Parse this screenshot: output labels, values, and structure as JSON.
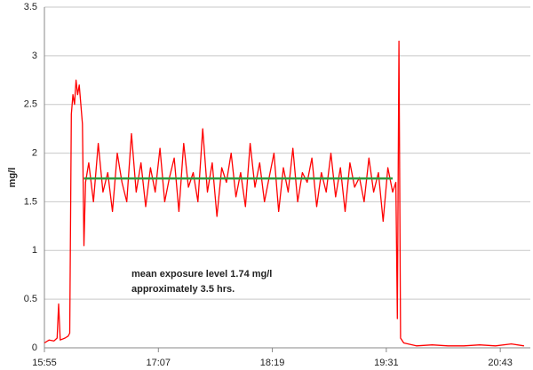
{
  "chart_data": {
    "type": "line",
    "ylabel": "mg/l",
    "annotations": [
      "mean exposure level 1.74 mg/l",
      "approximately  3.5 hrs."
    ],
    "xlim": [
      955,
      1262
    ],
    "xticks": [
      {
        "value": 955,
        "label": "15:55"
      },
      {
        "value": 1027,
        "label": "17:07"
      },
      {
        "value": 1099,
        "label": "18:19"
      },
      {
        "value": 1171,
        "label": "19:31"
      },
      {
        "value": 1243,
        "label": "20:43"
      }
    ],
    "ylim": [
      0,
      3.5
    ],
    "yticks": [
      0,
      0.5,
      1,
      1.5,
      2,
      2.5,
      3,
      3.5
    ],
    "grid": true,
    "series": [
      {
        "color": "#ff0000",
        "x": [
          955,
          958,
          961,
          963,
          964,
          965,
          968,
          970,
          971,
          972,
          973,
          974,
          975,
          976,
          977,
          978,
          979,
          980,
          981,
          983,
          986,
          989,
          992,
          995,
          998,
          1001,
          1004,
          1007,
          1010,
          1013,
          1016,
          1019,
          1022,
          1025,
          1028,
          1031,
          1034,
          1037,
          1040,
          1043,
          1046,
          1049,
          1052,
          1055,
          1058,
          1061,
          1064,
          1067,
          1070,
          1073,
          1076,
          1079,
          1082,
          1085,
          1088,
          1091,
          1094,
          1097,
          1100,
          1103,
          1106,
          1109,
          1112,
          1115,
          1118,
          1121,
          1124,
          1127,
          1130,
          1133,
          1136,
          1139,
          1142,
          1145,
          1148,
          1151,
          1154,
          1157,
          1160,
          1163,
          1166,
          1169,
          1172,
          1175,
          1177,
          1178,
          1179,
          1180,
          1182,
          1190,
          1200,
          1210,
          1220,
          1230,
          1240,
          1250,
          1258
        ],
        "values": [
          0.05,
          0.08,
          0.07,
          0.1,
          0.45,
          0.08,
          0.1,
          0.12,
          0.15,
          2.4,
          2.6,
          2.5,
          2.75,
          2.6,
          2.7,
          2.5,
          2.3,
          1.05,
          1.7,
          1.9,
          1.5,
          2.1,
          1.6,
          1.8,
          1.4,
          2.0,
          1.7,
          1.5,
          2.2,
          1.6,
          1.9,
          1.45,
          1.85,
          1.6,
          2.05,
          1.5,
          1.75,
          1.95,
          1.4,
          2.1,
          1.65,
          1.8,
          1.5,
          2.25,
          1.6,
          1.9,
          1.35,
          1.85,
          1.7,
          2.0,
          1.55,
          1.8,
          1.45,
          2.1,
          1.65,
          1.9,
          1.5,
          1.75,
          2.0,
          1.4,
          1.85,
          1.6,
          2.05,
          1.5,
          1.8,
          1.7,
          1.95,
          1.45,
          1.8,
          1.6,
          2.0,
          1.55,
          1.85,
          1.4,
          1.9,
          1.65,
          1.75,
          1.5,
          1.95,
          1.6,
          1.8,
          1.3,
          1.85,
          1.6,
          1.7,
          0.3,
          3.15,
          0.1,
          0.05,
          0.02,
          0.03,
          0.02,
          0.02,
          0.03,
          0.02,
          0.04,
          0.02
        ]
      },
      {
        "color": "#2e9a3e",
        "x": [
          980,
          1175
        ],
        "values": [
          1.74,
          1.74
        ]
      }
    ]
  }
}
